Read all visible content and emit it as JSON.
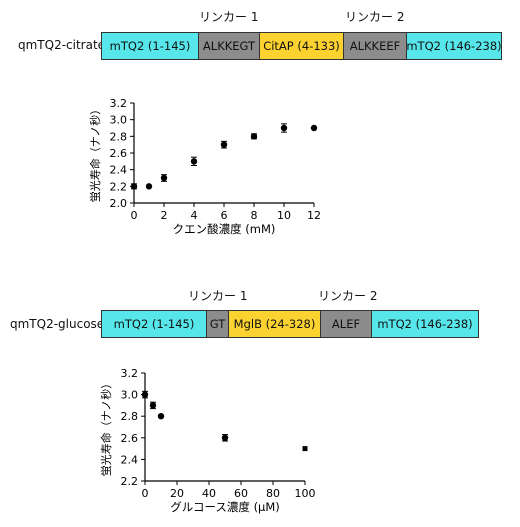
{
  "constructs": [
    {
      "name": "qmTQ2-citrate",
      "linkers": [
        "リンカー 1",
        "リンカー 2"
      ],
      "segments": [
        {
          "label": "mTQ2 (1-145)",
          "color": "#57e6ea"
        },
        {
          "label": "ALKKEGT",
          "color": "#8c8c8c"
        },
        {
          "label": "CitAP (4-133)",
          "color": "#fbd22f"
        },
        {
          "label": "ALKKEEF",
          "color": "#8c8c8c"
        },
        {
          "label": "mTQ2 (146-238)",
          "color": "#57e6ea"
        }
      ]
    },
    {
      "name": "qmTQ2-glucose",
      "linkers": [
        "リンカー 1",
        "リンカー 2"
      ],
      "segments": [
        {
          "label": "mTQ2 (1-145)",
          "color": "#57e6ea"
        },
        {
          "label": "GT",
          "color": "#8c8c8c"
        },
        {
          "label": "MglB (24-328)",
          "color": "#fbd22f"
        },
        {
          "label": "ALEF",
          "color": "#8c8c8c"
        },
        {
          "label": "mTQ2 (146-238)",
          "color": "#57e6ea"
        }
      ]
    }
  ],
  "chart_data": [
    {
      "type": "scatter",
      "xlabel": "クエン酸濃度 (mM)",
      "ylabel": "蛍光寿命（ナノ秒）",
      "xlim": [
        0,
        12
      ],
      "ylim": [
        2.0,
        3.2
      ],
      "xticks": [
        "0",
        "2",
        "4",
        "6",
        "8",
        "10",
        "12"
      ],
      "yticks": [
        "2.0",
        "2.2",
        "2.4",
        "2.6",
        "2.8",
        "3.0",
        "3.2"
      ],
      "points": [
        {
          "x": 0,
          "y": 2.2,
          "err": 0.03
        },
        {
          "x": 1,
          "y": 2.2,
          "err": 0.0
        },
        {
          "x": 2,
          "y": 2.3,
          "err": 0.04
        },
        {
          "x": 4,
          "y": 2.5,
          "err": 0.05
        },
        {
          "x": 6,
          "y": 2.7,
          "err": 0.04
        },
        {
          "x": 8,
          "y": 2.8,
          "err": 0.03
        },
        {
          "x": 10,
          "y": 2.9,
          "err": 0.05
        },
        {
          "x": 12,
          "y": 2.9,
          "err": 0.0
        }
      ]
    },
    {
      "type": "scatter",
      "xlabel": "グルコース濃度 (μM)",
      "ylabel": "蛍光寿命（ナノ秒）",
      "xlim": [
        0,
        100
      ],
      "ylim": [
        2.2,
        3.2
      ],
      "xticks": [
        "0",
        "20",
        "40",
        "60",
        "80",
        "100"
      ],
      "yticks": [
        "2.2",
        "2.4",
        "2.6",
        "2.8",
        "3.0",
        "3.2"
      ],
      "points": [
        {
          "x": 0,
          "y": 3.0,
          "err": 0.03
        },
        {
          "x": 5,
          "y": 2.9,
          "err": 0.03
        },
        {
          "x": 10,
          "y": 2.8,
          "err": 0.0
        },
        {
          "x": 50,
          "y": 2.6,
          "err": 0.03
        },
        {
          "x": 100,
          "y": 2.5,
          "err": 0.0
        }
      ]
    }
  ]
}
